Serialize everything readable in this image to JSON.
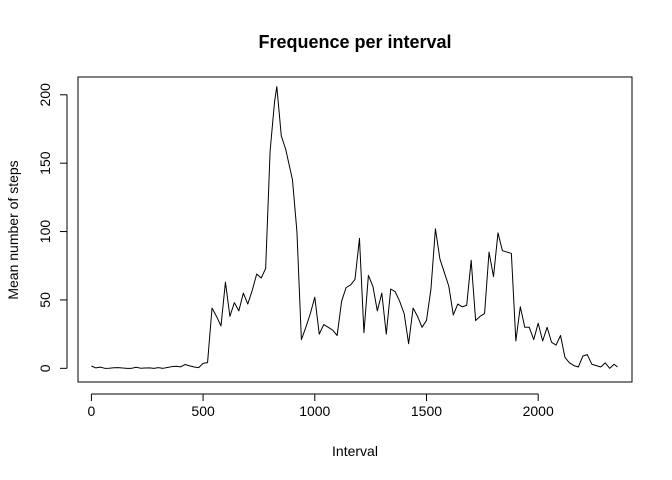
{
  "chart_data": {
    "type": "line",
    "title": "Frequence per interval",
    "xlabel": "Interval",
    "ylabel": "Mean number of steps",
    "xlim": [
      -60,
      2420
    ],
    "ylim": [
      -10,
      213
    ],
    "x_ticks": [
      0,
      500,
      1000,
      1500,
      2000
    ],
    "y_ticks": [
      0,
      50,
      100,
      150,
      200
    ],
    "grid": false,
    "legend": "none",
    "line_color": "#000000",
    "series": [
      {
        "x": [
          0,
          20,
          40,
          60,
          80,
          100,
          120,
          140,
          160,
          180,
          200,
          220,
          240,
          260,
          280,
          300,
          320,
          340,
          360,
          380,
          400,
          420,
          440,
          460,
          480,
          500,
          520,
          540,
          560,
          580,
          600,
          620,
          640,
          660,
          680,
          700,
          720,
          740,
          760,
          780,
          800,
          820,
          830,
          850,
          870,
          900,
          920,
          940,
          960,
          980,
          1000,
          1020,
          1040,
          1060,
          1080,
          1100,
          1120,
          1140,
          1160,
          1180,
          1200,
          1220,
          1240,
          1260,
          1280,
          1300,
          1320,
          1340,
          1360,
          1380,
          1400,
          1420,
          1440,
          1460,
          1480,
          1500,
          1520,
          1540,
          1560,
          1580,
          1600,
          1620,
          1640,
          1660,
          1680,
          1700,
          1720,
          1740,
          1760,
          1780,
          1800,
          1820,
          1840,
          1860,
          1880,
          1900,
          1920,
          1940,
          1960,
          1980,
          2000,
          2020,
          2040,
          2060,
          2080,
          2100,
          2120,
          2140,
          2160,
          2180,
          2200,
          2220,
          2240,
          2260,
          2280,
          2300,
          2320,
          2340,
          2355
        ],
        "y": [
          1.7,
          0.3,
          0.9,
          0,
          0.1,
          0.4,
          0.5,
          0.2,
          0,
          0,
          0.8,
          0.1,
          0.2,
          0.3,
          0,
          0.5,
          0,
          0.6,
          1.2,
          1.5,
          1.1,
          2.8,
          1.8,
          1,
          0.5,
          3.6,
          4.2,
          44,
          38,
          31,
          63,
          38,
          48,
          42,
          55,
          47,
          57,
          69,
          66,
          73,
          159,
          195,
          206,
          170,
          160,
          138,
          100,
          21,
          30,
          40,
          52,
          25,
          32,
          30,
          28,
          24,
          49,
          59,
          61,
          65,
          95,
          26,
          68,
          60,
          42,
          55,
          25,
          58,
          56,
          49,
          40,
          18,
          44,
          38,
          30,
          35,
          58,
          102,
          80,
          70,
          60,
          39,
          47,
          45,
          46,
          79,
          35,
          38,
          40,
          85,
          67,
          99,
          86,
          85,
          84,
          20,
          45,
          30,
          30,
          21,
          33,
          20,
          30,
          19,
          17,
          24,
          8,
          4,
          2,
          1,
          9,
          10,
          3,
          2,
          1,
          4,
          0,
          3,
          1
        ]
      }
    ]
  }
}
